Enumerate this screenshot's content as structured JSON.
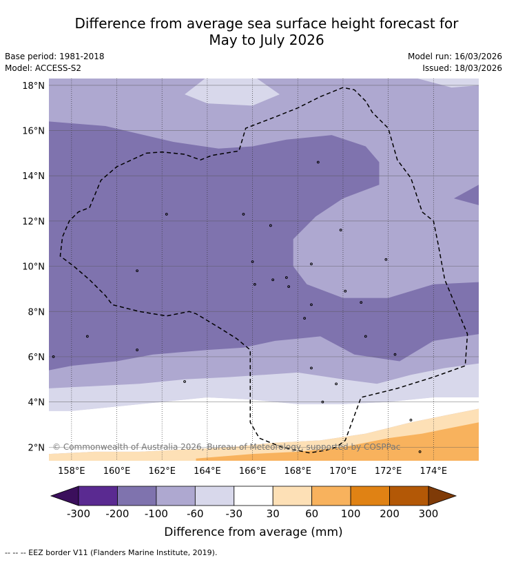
{
  "title_line1": "Difference from average sea surface height forecast for",
  "title_line2": "May to July 2026",
  "meta": {
    "base_period": "Base period: 1981-2018",
    "model": "Model: ACCESS-S2",
    "model_run": "Model run: 16/03/2026",
    "issued": "Issued: 18/03/2026"
  },
  "copyright": "© Commonwealth of Australia 2026, Bureau of Meteorology, supported by COSPPac",
  "footnote": "--  --  -- EEZ border V11 (Flanders Marine Institute, 2019).",
  "chart_data": {
    "type": "heatmap",
    "title": "Difference from average sea surface height forecast for May to July 2026",
    "x_range": [
      157,
      176
    ],
    "y_range": [
      1.4,
      18.3
    ],
    "x_ticks": [
      {
        "value": 158,
        "label": "158°E"
      },
      {
        "value": 160,
        "label": "160°E"
      },
      {
        "value": 162,
        "label": "162°E"
      },
      {
        "value": 164,
        "label": "164°E"
      },
      {
        "value": 166,
        "label": "166°E"
      },
      {
        "value": 168,
        "label": "168°E"
      },
      {
        "value": 170,
        "label": "170°E"
      },
      {
        "value": 172,
        "label": "172°E"
      },
      {
        "value": 174,
        "label": "174°E"
      }
    ],
    "y_ticks": [
      {
        "value": 2,
        "label": "2°N"
      },
      {
        "value": 4,
        "label": "4°N"
      },
      {
        "value": 6,
        "label": "6°N"
      },
      {
        "value": 8,
        "label": "8°N"
      },
      {
        "value": 10,
        "label": "10°N"
      },
      {
        "value": 12,
        "label": "12°N"
      },
      {
        "value": 14,
        "label": "14°N"
      },
      {
        "value": 16,
        "label": "16°N"
      },
      {
        "value": 18,
        "label": "18°N"
      }
    ],
    "colorbar": {
      "title": "Difference from average (mm)",
      "labels": [
        "-300",
        "-200",
        "-100",
        "-60",
        "-30",
        "30",
        "60",
        "100",
        "200",
        "300"
      ],
      "below_color": "#3b0f5c",
      "above_color": "#7f3b08",
      "colors": [
        "#5a2a91",
        "#7f73ae",
        "#aea8d0",
        "#d8d8eb",
        "#ffffff",
        "#fde0b6",
        "#f8b25d",
        "#e08214",
        "#b35806"
      ]
    },
    "regions": [
      {
        "name": "-100 to -60",
        "color": "#aea8d0",
        "points": [
          [
            157,
            1.4
          ],
          [
            176,
            1.4
          ],
          [
            176,
            18.3
          ],
          [
            157,
            18.3
          ]
        ]
      },
      {
        "name": "-60 to -30 (north)",
        "color": "#d8d8eb",
        "points": [
          [
            163,
            17.6
          ],
          [
            164,
            17.2
          ],
          [
            166,
            17.1
          ],
          [
            167.2,
            17.6
          ],
          [
            166.2,
            18.3
          ],
          [
            163.9,
            18.3
          ]
        ]
      },
      {
        "name": "-60 to -30 (north-east)",
        "color": "#d8d8eb",
        "points": [
          [
            173.3,
            18.3
          ],
          [
            174.8,
            17.9
          ],
          [
            176,
            18
          ],
          [
            176,
            18.3
          ]
        ]
      },
      {
        "name": "-200 to -100",
        "color": "#7f73ae",
        "points": [
          [
            157,
            16.4
          ],
          [
            159.5,
            16.2
          ],
          [
            162.5,
            15.5
          ],
          [
            164.5,
            15.2
          ],
          [
            166,
            15.3
          ],
          [
            167.5,
            15.6
          ],
          [
            169.5,
            15.8
          ],
          [
            171,
            15.3
          ],
          [
            171.6,
            14.6
          ],
          [
            171.6,
            13.6
          ],
          [
            170,
            13
          ],
          [
            168.8,
            12.2
          ],
          [
            167.8,
            11.2
          ],
          [
            167.8,
            10
          ],
          [
            168.4,
            9.2
          ],
          [
            170,
            8.6
          ],
          [
            172,
            8.6
          ],
          [
            174,
            9.2
          ],
          [
            176,
            9.3
          ],
          [
            176,
            7
          ],
          [
            174,
            6.7
          ],
          [
            172.5,
            5.8
          ],
          [
            170.5,
            6.1
          ],
          [
            169,
            6.9
          ],
          [
            168,
            6.8
          ],
          [
            167,
            6.7
          ],
          [
            165.6,
            6.4
          ],
          [
            164,
            6.3
          ],
          [
            161.6,
            6.1
          ],
          [
            160,
            5.8
          ],
          [
            158,
            5.6
          ],
          [
            157,
            5.4
          ]
        ]
      },
      {
        "name": "-200 to -100 (east)",
        "color": "#7f73ae",
        "points": [
          [
            174.9,
            13
          ],
          [
            176,
            13.6
          ],
          [
            176,
            12.7
          ]
        ]
      },
      {
        "name": "-60 to -30 (south band)",
        "color": "#d8d8eb",
        "points": [
          [
            157,
            4.6
          ],
          [
            159,
            4.7
          ],
          [
            161,
            4.8
          ],
          [
            163,
            5.0
          ],
          [
            165,
            5.1
          ],
          [
            166.5,
            5.2
          ],
          [
            168,
            5.3
          ],
          [
            170,
            5.0
          ],
          [
            171.5,
            4.8
          ],
          [
            173,
            5.2
          ],
          [
            174.5,
            5.5
          ],
          [
            176,
            5.7
          ],
          [
            176,
            4.2
          ],
          [
            174,
            4.2
          ],
          [
            172,
            4.0
          ],
          [
            170,
            3.9
          ],
          [
            168,
            3.9
          ],
          [
            166,
            4.1
          ],
          [
            164,
            4.2
          ],
          [
            162,
            4.0
          ],
          [
            160,
            3.8
          ],
          [
            158,
            3.6
          ],
          [
            157,
            3.6
          ]
        ]
      },
      {
        "name": "-30 to 30",
        "color": "#ffffff",
        "points": [
          [
            157,
            3.6
          ],
          [
            158,
            3.6
          ],
          [
            160,
            3.8
          ],
          [
            162,
            4.0
          ],
          [
            164,
            4.2
          ],
          [
            166,
            4.1
          ],
          [
            168,
            3.9
          ],
          [
            170,
            3.9
          ],
          [
            172,
            4.0
          ],
          [
            174,
            4.2
          ],
          [
            176,
            4.2
          ],
          [
            176,
            3.7
          ],
          [
            174.5,
            3.4
          ],
          [
            173,
            3.1
          ],
          [
            171,
            2.6
          ],
          [
            169,
            2.3
          ],
          [
            167,
            2.2
          ],
          [
            165,
            2.0
          ],
          [
            163,
            1.9
          ],
          [
            161,
            1.8
          ],
          [
            159,
            1.8
          ],
          [
            157,
            1.7
          ]
        ]
      },
      {
        "name": "30 to 60",
        "color": "#fde0b6",
        "points": [
          [
            157,
            1.7
          ],
          [
            159,
            1.8
          ],
          [
            161,
            1.8
          ],
          [
            163,
            1.9
          ],
          [
            165,
            2.0
          ],
          [
            167,
            2.2
          ],
          [
            169,
            2.3
          ],
          [
            171,
            2.6
          ],
          [
            173,
            3.1
          ],
          [
            174.5,
            3.4
          ],
          [
            176,
            3.7
          ],
          [
            176,
            1.4
          ],
          [
            157,
            1.4
          ]
        ]
      },
      {
        "name": "60 to 100",
        "color": "#f8b25d",
        "points": [
          [
            163.5,
            1.4
          ],
          [
            163.5,
            1.5
          ],
          [
            166,
            1.7
          ],
          [
            168,
            1.8
          ],
          [
            170,
            2.0
          ],
          [
            172,
            2.4
          ],
          [
            173.5,
            2.6
          ],
          [
            175,
            2.9
          ],
          [
            176,
            3.1
          ],
          [
            176,
            1.4
          ]
        ]
      }
    ],
    "eez_border": [
      [
        161.3,
        15.0
      ],
      [
        162,
        15.05
      ],
      [
        163,
        14.95
      ],
      [
        163.7,
        14.7
      ],
      [
        164.2,
        14.9
      ],
      [
        165.4,
        15.1
      ],
      [
        165.7,
        16.1
      ],
      [
        167,
        16.6
      ],
      [
        168,
        17.0
      ],
      [
        169,
        17.5
      ],
      [
        170,
        17.9
      ],
      [
        170.5,
        17.8
      ],
      [
        171,
        17.3
      ],
      [
        171.3,
        16.8
      ],
      [
        172.0,
        16.1
      ],
      [
        172.4,
        14.7
      ],
      [
        173.0,
        13.9
      ],
      [
        173.5,
        12.4
      ],
      [
        174.0,
        12.0
      ],
      [
        174.2,
        11.0
      ],
      [
        174.5,
        9.4
      ],
      [
        175.0,
        8.2
      ],
      [
        175.5,
        7.0
      ],
      [
        175.4,
        5.6
      ],
      [
        174.0,
        5.1
      ],
      [
        172.4,
        4.6
      ],
      [
        171.6,
        4.4
      ],
      [
        170.8,
        4.2
      ],
      [
        170.1,
        2.3
      ],
      [
        169.7,
        2.0
      ],
      [
        169.2,
        1.85
      ],
      [
        168.5,
        1.75
      ],
      [
        167.3,
        2.0
      ],
      [
        166.3,
        2.4
      ],
      [
        165.9,
        3.1
      ],
      [
        165.9,
        4.5
      ],
      [
        165.9,
        6.3
      ],
      [
        165.3,
        6.8
      ],
      [
        164.5,
        7.3
      ],
      [
        163.5,
        7.9
      ],
      [
        163.2,
        8.0
      ],
      [
        162.7,
        7.9
      ],
      [
        162.2,
        7.8
      ],
      [
        161.0,
        8.0
      ],
      [
        159.8,
        8.3
      ],
      [
        159.5,
        8.7
      ],
      [
        158.8,
        9.4
      ],
      [
        158.1,
        10.0
      ],
      [
        157.5,
        10.45
      ],
      [
        157.6,
        11.3
      ],
      [
        157.9,
        12.0
      ],
      [
        158.3,
        12.4
      ],
      [
        158.8,
        12.6
      ],
      [
        159.3,
        13.8
      ],
      [
        160.0,
        14.4
      ]
    ],
    "islands": [
      [
        158.7,
        6.9
      ],
      [
        163,
        4.9
      ],
      [
        168.6,
        5.5
      ],
      [
        169.7,
        4.8
      ],
      [
        169.1,
        4.0
      ],
      [
        171,
        6.9
      ],
      [
        172.3,
        6.1
      ],
      [
        173,
        3.2
      ],
      [
        173.4,
        1.8
      ],
      [
        160.9,
        6.3
      ],
      [
        157.2,
        6.0
      ],
      [
        168.9,
        14.6
      ],
      [
        162.2,
        12.3
      ],
      [
        165.6,
        12.3
      ],
      [
        166.8,
        11.8
      ],
      [
        169.9,
        11.6
      ],
      [
        171.9,
        10.3
      ],
      [
        168.6,
        10.1
      ],
      [
        167.5,
        9.5
      ],
      [
        166.1,
        9.2
      ],
      [
        166.9,
        9.4
      ],
      [
        167.6,
        9.1
      ],
      [
        168.3,
        7.7
      ],
      [
        168.6,
        8.3
      ],
      [
        170.1,
        8.9
      ],
      [
        170.8,
        8.4
      ],
      [
        160.9,
        9.8
      ],
      [
        166,
        10.2
      ]
    ]
  }
}
